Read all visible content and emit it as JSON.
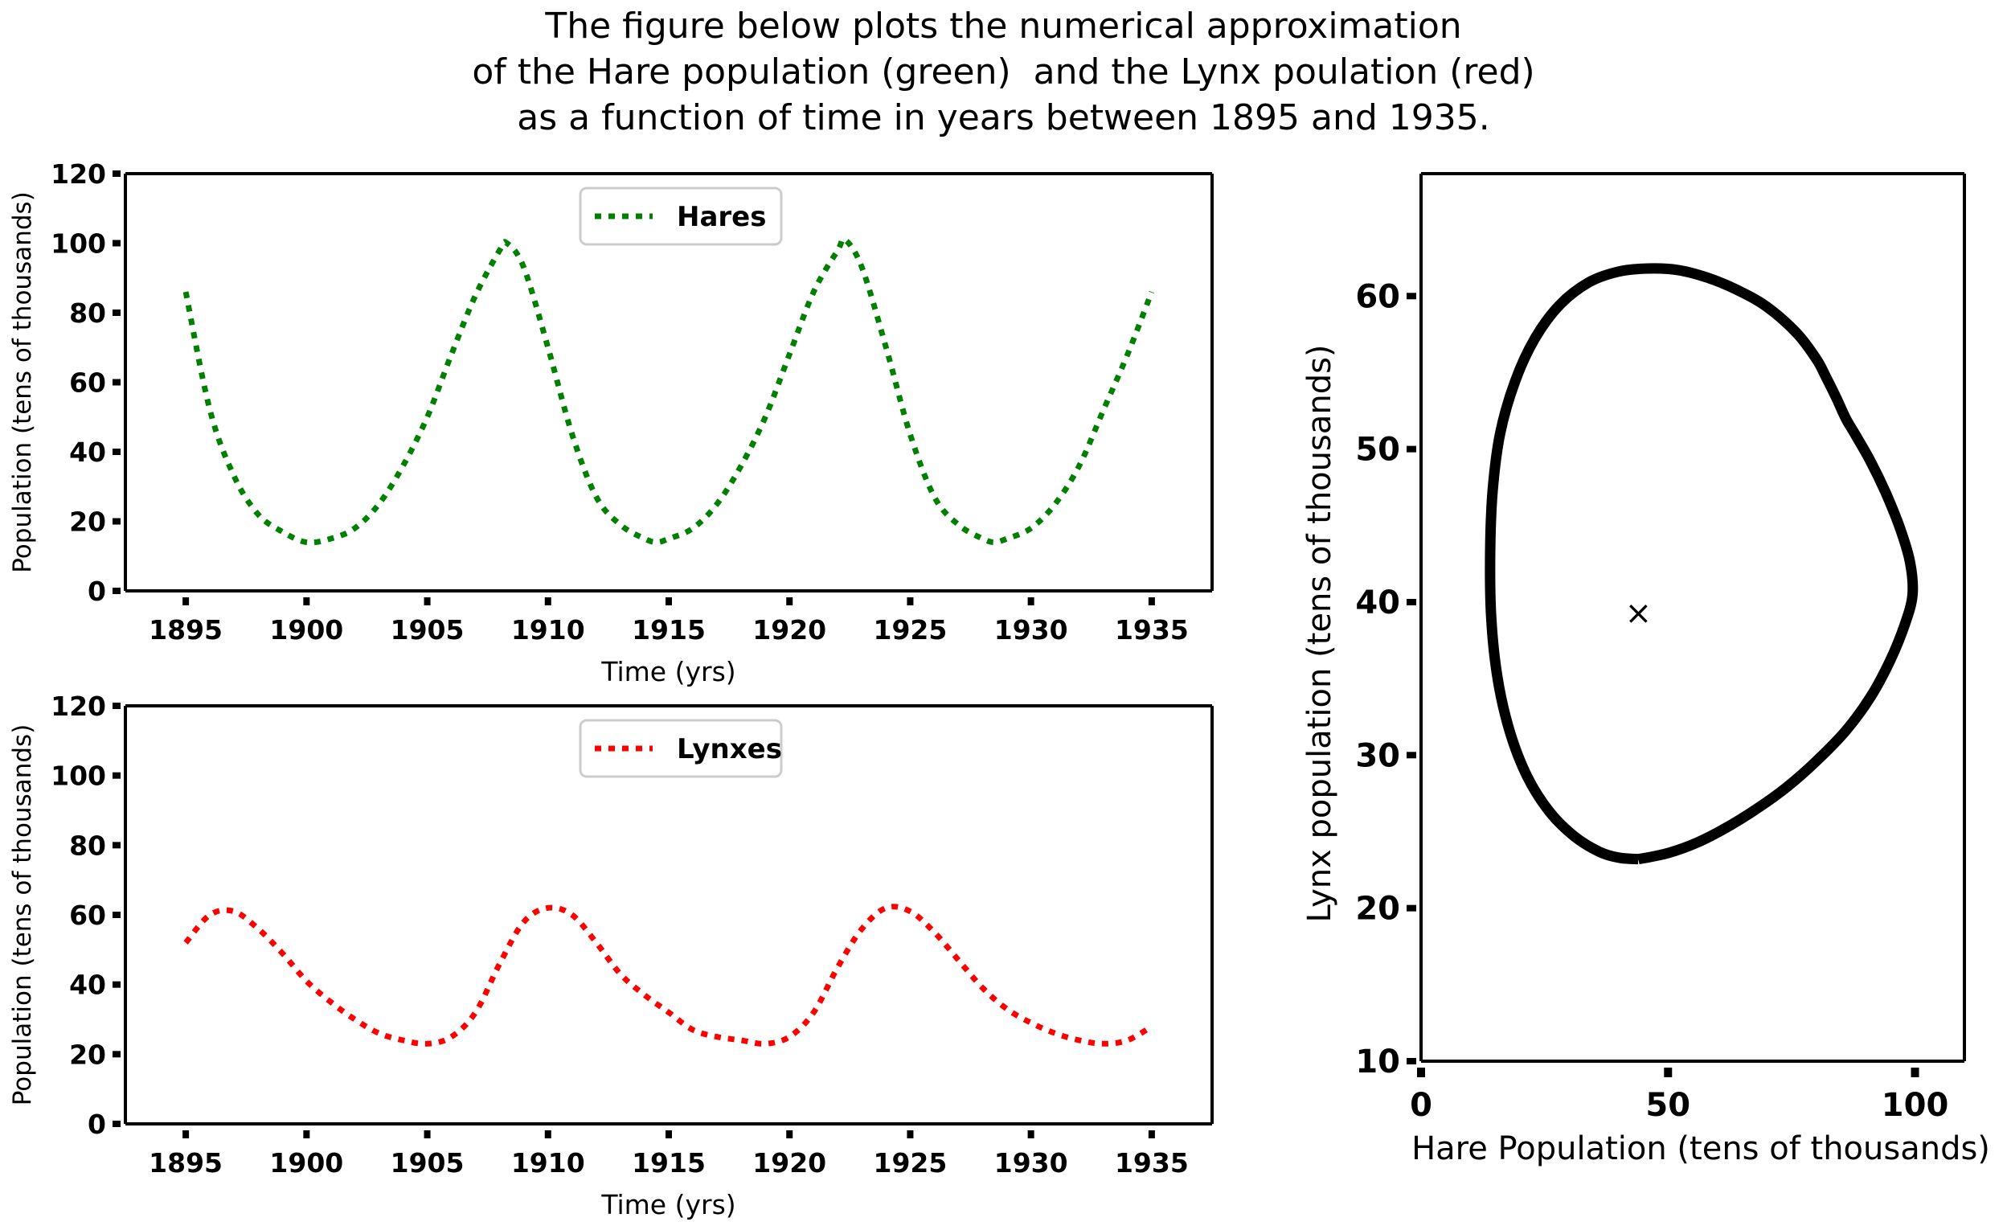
{
  "caption": [
    "The figure below plots the numerical approximation",
    "of the Hare population (green)  and the Lynx poulation (red)",
    "as a function of time in years between 1895 and 1935."
  ],
  "colors": {
    "hares": "#008000",
    "lynxes": "#ff0000",
    "phase": "#000000"
  },
  "chart_data": [
    {
      "type": "line",
      "style": "dotted",
      "xlabel": "Time (yrs)",
      "ylabel": "Population (tens of thousands)",
      "xlim": [
        1892.5,
        1937.5
      ],
      "ylim": [
        0,
        120
      ],
      "xticks": [
        1895,
        1900,
        1905,
        1910,
        1915,
        1920,
        1925,
        1930,
        1935
      ],
      "yticks": [
        0,
        20,
        40,
        60,
        80,
        100,
        120
      ],
      "legend": "top-center",
      "series": [
        {
          "name": "Hares",
          "x": [
            1895,
            1896,
            1897,
            1898,
            1899,
            1900,
            1901,
            1902,
            1903,
            1904,
            1905,
            1906,
            1907,
            1908,
            1908.3,
            1909,
            1910,
            1911,
            1912,
            1913,
            1914,
            1914.5,
            1915,
            1916,
            1917,
            1918,
            1919,
            1920,
            1921,
            1922,
            1922.3,
            1923,
            1924,
            1925,
            1926,
            1927,
            1928,
            1928.5,
            1929,
            1930,
            1931,
            1932,
            1933,
            1934,
            1935
          ],
          "y": [
            86,
            52,
            33,
            22,
            17,
            14,
            15,
            18,
            25,
            36,
            50,
            68,
            85,
            98,
            100,
            93,
            70,
            45,
            27,
            19,
            15,
            14,
            15,
            18,
            25,
            36,
            50,
            68,
            86,
            98,
            101,
            93,
            70,
            45,
            27,
            19,
            15,
            14,
            15,
            18,
            25,
            36,
            52,
            68,
            86
          ]
        }
      ]
    },
    {
      "type": "line",
      "style": "dotted",
      "xlabel": "Time (yrs)",
      "ylabel": "Population (tens of thousands)",
      "xlim": [
        1892.5,
        1937.5
      ],
      "ylim": [
        0,
        120
      ],
      "xticks": [
        1895,
        1900,
        1905,
        1910,
        1915,
        1920,
        1925,
        1930,
        1935
      ],
      "yticks": [
        0,
        20,
        40,
        60,
        80,
        100,
        120
      ],
      "legend": "top-center",
      "series": [
        {
          "name": "Lynxes",
          "x": [
            1895,
            1896,
            1897,
            1898,
            1899,
            1900,
            1901,
            1902,
            1903,
            1904,
            1905,
            1906,
            1907,
            1908,
            1909,
            1910,
            1911,
            1912,
            1913,
            1914,
            1915,
            1916,
            1917,
            1918,
            1919,
            1920,
            1921,
            1922,
            1923,
            1924,
            1925,
            1926,
            1927,
            1928,
            1929,
            1930,
            1931,
            1932,
            1933,
            1934,
            1935
          ],
          "y": [
            52,
            60,
            61,
            56,
            49,
            41,
            35,
            30,
            26,
            24,
            23,
            25,
            32,
            46,
            58,
            62,
            60,
            52,
            43,
            37,
            32,
            27,
            25,
            24,
            23,
            25,
            32,
            45,
            56,
            62,
            61,
            55,
            47,
            39,
            33,
            29,
            26,
            24,
            23,
            24,
            28
          ]
        }
      ]
    },
    {
      "type": "line",
      "style": "solid",
      "xlabel": "Hare Population (tens of thousands)",
      "ylabel": "Lynx population (tens of thousands)",
      "xlim": [
        0,
        110
      ],
      "ylim": [
        10,
        68
      ],
      "xticks": [
        0,
        50,
        100
      ],
      "yticks": [
        10,
        20,
        30,
        40,
        50,
        60
      ],
      "series": [
        {
          "x": [
            44,
            50,
            56,
            62,
            68,
            74,
            80,
            86,
            91,
            95,
            98,
            99.5,
            99,
            97,
            94,
            91,
            88,
            86,
            84,
            82,
            80,
            76,
            70,
            64,
            58,
            52,
            46,
            40,
            34,
            28,
            23,
            19,
            16,
            14.5,
            14,
            14.2,
            15.5,
            18,
            21.5,
            26,
            31,
            36,
            40,
            44
          ],
          "y": [
            23.2,
            23.6,
            24.3,
            25.3,
            26.5,
            27.9,
            29.6,
            31.6,
            33.8,
            36.2,
            38.6,
            40.5,
            42.6,
            44.8,
            47.2,
            49.2,
            50.9,
            52,
            53.4,
            54.7,
            55.9,
            57.6,
            59.3,
            60.4,
            61.2,
            61.7,
            61.8,
            61.6,
            60.9,
            59.4,
            57.2,
            54.4,
            51,
            47.3,
            43.3,
            39,
            35,
            31.5,
            28.6,
            26.3,
            24.7,
            23.7,
            23.3,
            23.2
          ]
        }
      ],
      "markers": [
        {
          "x": 44,
          "y": 39.2,
          "symbol": "×"
        }
      ]
    }
  ]
}
